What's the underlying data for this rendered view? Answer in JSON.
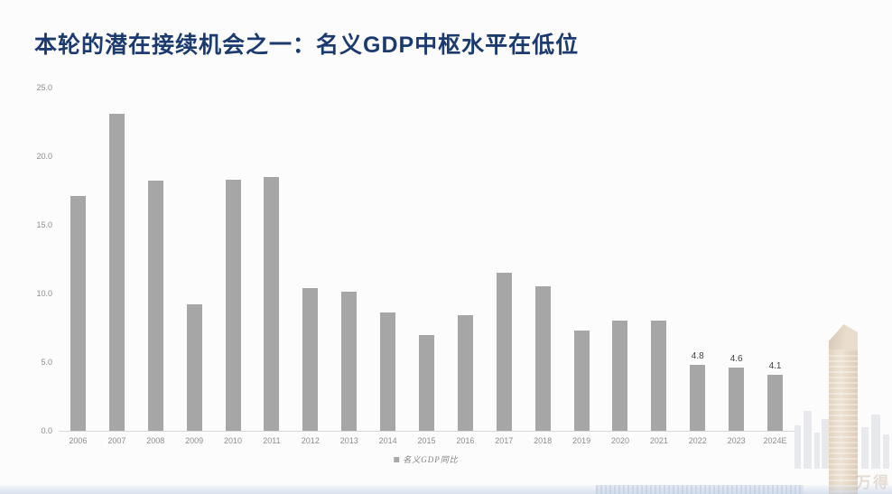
{
  "page": {
    "title": "本轮的潜在接续机会之一：名义GDP中枢水平在低位",
    "title_color": "#1b3a70",
    "watermark_text": "万得"
  },
  "chart_data": {
    "type": "bar",
    "title": "",
    "xlabel": "",
    "ylabel": "",
    "categories": [
      "2006",
      "2007",
      "2008",
      "2009",
      "2010",
      "2011",
      "2012",
      "2013",
      "2014",
      "2015",
      "2016",
      "2017",
      "2018",
      "2019",
      "2020",
      "2021",
      "2022",
      "2023",
      "2024E"
    ],
    "values": [
      17.1,
      23.1,
      18.2,
      9.2,
      18.3,
      18.5,
      10.4,
      10.1,
      8.6,
      7.0,
      8.4,
      11.5,
      10.5,
      7.3,
      8.0,
      8.0,
      4.8,
      4.6,
      4.1
    ],
    "point_labels": [
      null,
      null,
      null,
      null,
      null,
      null,
      null,
      null,
      null,
      null,
      null,
      null,
      null,
      null,
      null,
      null,
      "4.8",
      "4.6",
      "4.1"
    ],
    "ylim": [
      0,
      25
    ],
    "yticks": [
      0,
      5,
      10,
      15,
      20,
      25
    ],
    "ytick_labels": [
      "0.0",
      "5.0",
      "10.0",
      "15.0",
      "20.0",
      "25.0"
    ],
    "grid": false,
    "legend": [
      "名义GDP同比"
    ],
    "legend_position": "bottom",
    "bar_color": "#a6a6a6"
  }
}
